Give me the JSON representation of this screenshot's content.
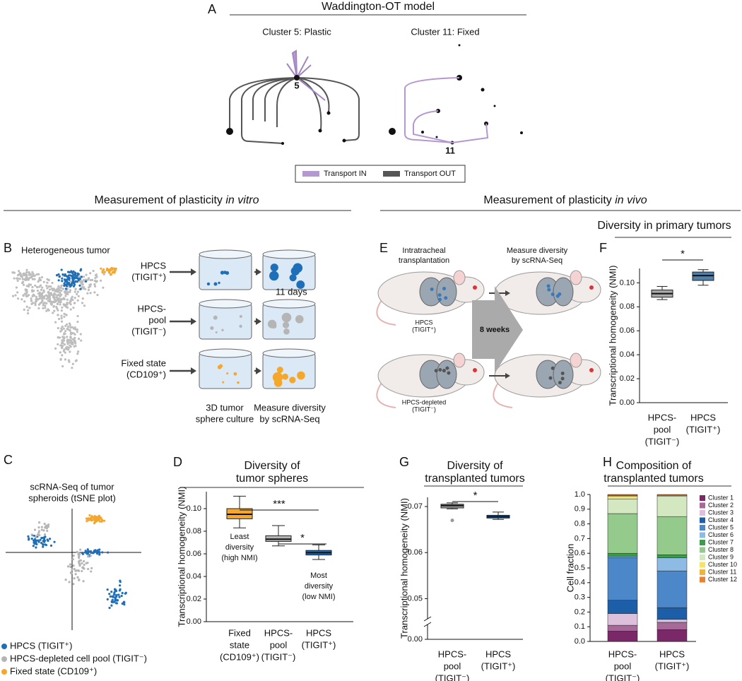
{
  "panel_letters": [
    "A",
    "B",
    "C",
    "D",
    "E",
    "F",
    "G",
    "H"
  ],
  "panel_a": {
    "title": "Waddington-OT model",
    "left_title": "Cluster 5: Plastic",
    "right_title": "Cluster 11: Fixed",
    "left_node": "5",
    "right_node": "11",
    "legend": [
      "Transport IN",
      "Transport OUT"
    ]
  },
  "section_vitro": [
    "Measurement of plasticity ",
    "in vitro"
  ],
  "section_vivo": [
    "Measurement of plasticity ",
    "in vivo"
  ],
  "panel_b": {
    "title": "Heterogeneous tumor",
    "rows": [
      [
        "HPCS",
        "(TIGIT⁺)"
      ],
      [
        "HPCS-",
        "pool",
        "(TIGIT⁻)"
      ],
      [
        "Fixed state",
        "(CD109⁺)"
      ]
    ],
    "duration": "11 days",
    "step1": [
      "3D tumor",
      "sphere culture"
    ],
    "step2": [
      "Measure diversity",
      "by scRNA-Seq"
    ]
  },
  "panel_c": {
    "title": [
      "scRNA-Seq of tumor",
      "spheroids (tSNE plot)"
    ],
    "legend": [
      "HPCS (TIGIT⁺)",
      "HPCS-depleted cell pool (TIGIT⁻)",
      "Fixed state (CD109⁺)"
    ]
  },
  "panel_e": {
    "left_title": [
      "Intratracheal",
      "transplantation"
    ],
    "right_title": [
      "Measure diversity",
      "by scRNA-Seq"
    ],
    "mouse1": [
      "HPCS",
      "(TIGIT⁺)"
    ],
    "mouse2": [
      "HPCS-depleted",
      "(TIGIT⁻)"
    ],
    "arrow": "8 weeks"
  },
  "chart_data": [
    {
      "type": "box",
      "title": [
        "Diversity of",
        "tumor spheres"
      ],
      "ylabel": "Transcriptional homogeneity (NMI)",
      "categories": [
        [
          "Fixed",
          "state",
          "(CD109⁺)"
        ],
        [
          "HPCS-",
          "pool",
          "(TIGIT⁻)"
        ],
        [
          "HPCS",
          "(TIGIT⁺)"
        ]
      ],
      "boxes": [
        {
          "min": 0.083,
          "q1": 0.091,
          "median": 0.095,
          "q3": 0.1,
          "max": 0.111,
          "color": "#f5a72c"
        },
        {
          "min": 0.067,
          "q1": 0.071,
          "median": 0.073,
          "q3": 0.076,
          "max": 0.085,
          "color": "#b5b5b5"
        },
        {
          "min": 0.055,
          "q1": 0.059,
          "median": 0.061,
          "q3": 0.063,
          "max": 0.068,
          "color": "#1f6fb8"
        }
      ],
      "ylim": [
        0,
        0.115
      ],
      "yticks": [
        {
          "value": 0,
          "label": "0.00"
        },
        0.02,
        0.04,
        0.06,
        0.08,
        {
          "value": 0.1,
          "label": "0.10"
        }
      ],
      "annotations": [
        "***",
        "*"
      ],
      "notes": [
        [
          "Least",
          "diversity",
          "(high NMI)"
        ],
        [
          "Most",
          "diversity",
          "(low NMI)"
        ]
      ]
    },
    {
      "type": "box",
      "title": [
        "Diversity in primary tumors"
      ],
      "ylabel": "Transcriptional homogeneity (NMI)",
      "categories": [
        [
          "HPCS-",
          "pool",
          "(TIGIT⁻)"
        ],
        [
          "HPCS",
          "(TIGIT⁺)"
        ]
      ],
      "boxes": [
        {
          "min": 0.086,
          "q1": 0.088,
          "median": 0.091,
          "q3": 0.094,
          "max": 0.097,
          "color": "#a9a9a9"
        },
        {
          "min": 0.098,
          "q1": 0.102,
          "median": 0.106,
          "q3": 0.109,
          "max": 0.111,
          "color": "#4f80ab"
        }
      ],
      "ylim": [
        0,
        0.112
      ],
      "yticks": [
        {
          "value": 0,
          "label": "0.00"
        },
        0.02,
        0.04,
        0.06,
        0.08,
        {
          "value": 0.1,
          "label": "0.10"
        }
      ],
      "annotations": [
        "*"
      ]
    },
    {
      "type": "box",
      "title": [
        "Diversity of",
        "transplanted tumors"
      ],
      "ylabel": "Transcriptional homogeneity (NMI)",
      "categories": [
        [
          "HPCS-",
          "pool",
          "(TIGIT⁻)"
        ],
        [
          "HPCS",
          "(TIGIT⁺)"
        ]
      ],
      "boxes": [
        {
          "min": 0.0695,
          "q1": 0.0697,
          "median": 0.0702,
          "q3": 0.0705,
          "max": 0.0708,
          "color": "#a9a9a9",
          "outliers": [
            0.067
          ]
        },
        {
          "min": 0.0672,
          "q1": 0.0675,
          "median": 0.0678,
          "q3": 0.0681,
          "max": 0.0688,
          "color": "#1f78c8"
        }
      ],
      "ylim": [
        0.045,
        0.072
      ],
      "axis_break": true,
      "yticks": [
        {
          "value": 0,
          "label": "0.00"
        },
        0.05,
        0.06,
        0.07
      ],
      "annotations": [
        "*"
      ]
    },
    {
      "type": "stacked_bar",
      "title": [
        "Composition of",
        "transplanted tumors"
      ],
      "ylabel": "Cell fraction",
      "categories": [
        [
          "HPCS-",
          "pool",
          "(TIGIT⁻)"
        ],
        [
          "HPCS",
          "(TIGIT⁺)"
        ]
      ],
      "series": [
        {
          "name": "Cluster 1",
          "color": "#7a2868",
          "values": [
            0.07,
            0.08
          ]
        },
        {
          "name": "Cluster 2",
          "color": "#a66a98",
          "values": [
            0.04,
            0.05
          ]
        },
        {
          "name": "Cluster 3",
          "color": "#dcc0dc",
          "values": [
            0.08,
            0.02
          ]
        },
        {
          "name": "Cluster 4",
          "color": "#1d5ea8",
          "values": [
            0.09,
            0.08
          ]
        },
        {
          "name": "Cluster 5",
          "color": "#4b87c9",
          "values": [
            0.29,
            0.25
          ]
        },
        {
          "name": "Cluster 6",
          "color": "#8dbbe3",
          "values": [
            0.01,
            0.09
          ]
        },
        {
          "name": "Cluster 7",
          "color": "#3e9a4d",
          "values": [
            0.02,
            0.02
          ]
        },
        {
          "name": "Cluster 8",
          "color": "#94ca8c",
          "values": [
            0.27,
            0.26
          ]
        },
        {
          "name": "Cluster 9",
          "color": "#d3e8c1",
          "values": [
            0.1,
            0.14
          ]
        },
        {
          "name": "Cluster 10",
          "color": "#f4e46a",
          "values": [
            0.02,
            0.005
          ]
        },
        {
          "name": "Cluster 11",
          "color": "#f2b33c",
          "values": [
            0.005,
            0
          ]
        },
        {
          "name": "Cluster 12",
          "color": "#e7822d",
          "values": [
            0.005,
            0.005
          ]
        }
      ],
      "ylim": [
        0,
        1
      ],
      "yticks": [
        {
          "value": 0,
          "label": "0.0"
        },
        0.1,
        0.2,
        0.3,
        0.4,
        0.5,
        0.6,
        0.7,
        0.8,
        0.9,
        {
          "value": 1,
          "label": "1.0"
        }
      ]
    }
  ]
}
